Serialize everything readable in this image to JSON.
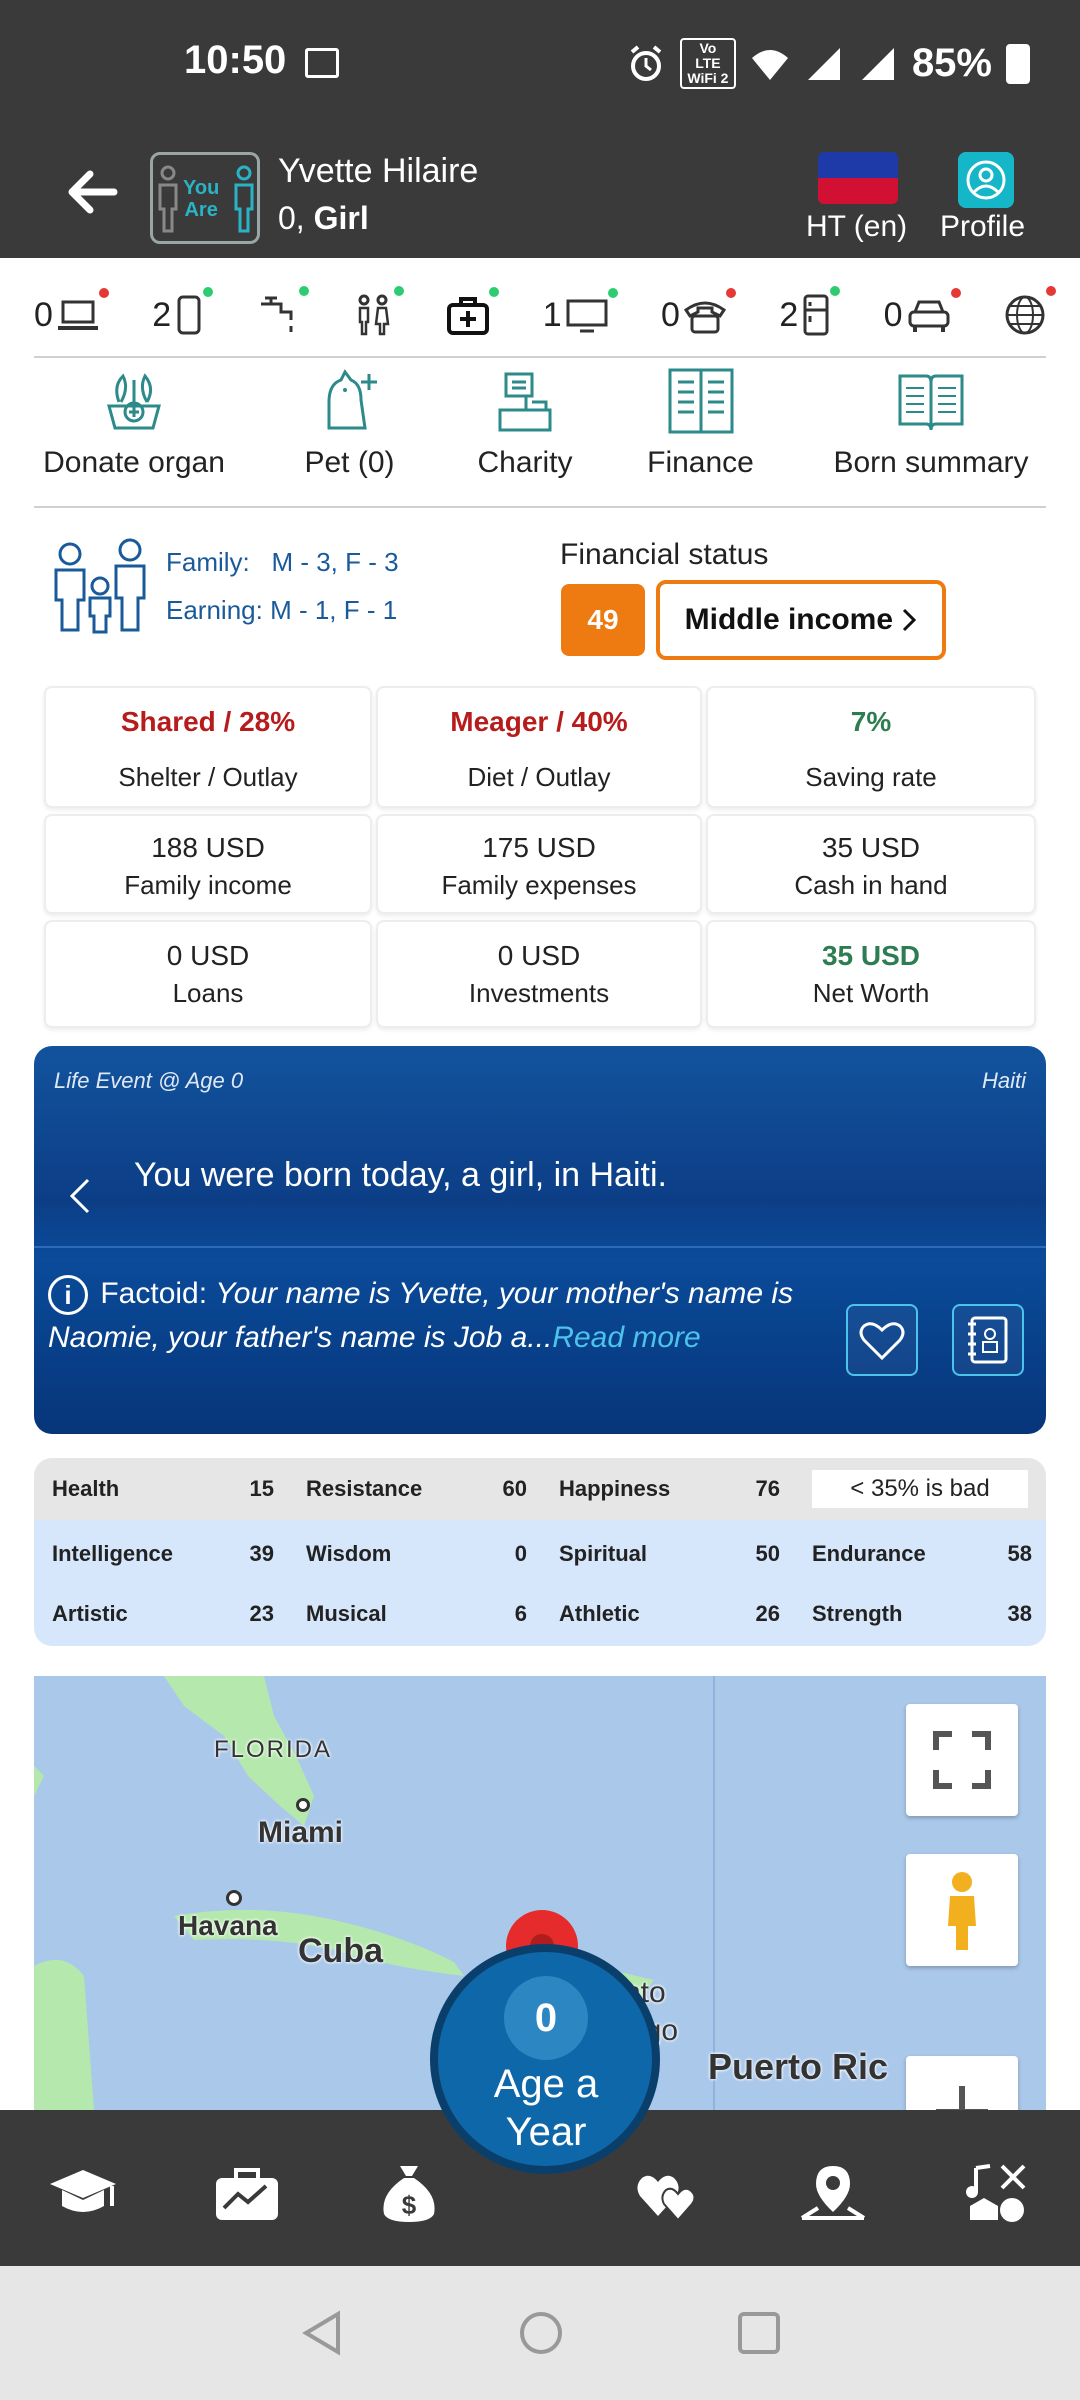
{
  "status_bar": {
    "time": "10:50",
    "battery": "85%",
    "wifi_label_top": "Vo LTE",
    "wifi_label_bottom": "WiFi 2"
  },
  "header": {
    "player_name": "Yvette Hilaire",
    "player_age": "0,",
    "player_gender": "Girl",
    "logo_text_line1": "You",
    "logo_text_line2": "Are",
    "language": "HT (en)",
    "profile": "Profile"
  },
  "assets": [
    {
      "count": "0",
      "icon": "laptop-icon",
      "dot": "red"
    },
    {
      "count": "2",
      "icon": "phone-icon",
      "dot": "green"
    },
    {
      "count": "",
      "icon": "faucet-icon",
      "dot": "green"
    },
    {
      "count": "",
      "icon": "restroom-icon",
      "dot": "green"
    },
    {
      "count": "",
      "icon": "medical-kit-icon",
      "dot": "green"
    },
    {
      "count": "1",
      "icon": "tv-icon",
      "dot": "green"
    },
    {
      "count": "0",
      "icon": "telephone-icon",
      "dot": "red"
    },
    {
      "count": "2",
      "icon": "fridge-icon",
      "dot": "green"
    },
    {
      "count": "0",
      "icon": "car-icon",
      "dot": "red"
    },
    {
      "count": "",
      "icon": "globe-icon",
      "dot": "red"
    }
  ],
  "actions": [
    {
      "label": "Donate organ",
      "icon": "donate-organ-icon"
    },
    {
      "label": "Pet (0)",
      "icon": "pet-icon"
    },
    {
      "label": "Charity",
      "icon": "charity-icon"
    },
    {
      "label": "Finance",
      "icon": "finance-icon"
    },
    {
      "label": "Born summary",
      "icon": "book-icon"
    }
  ],
  "family": {
    "family_label": "Family:",
    "family_value": "M - 3, F - 3",
    "earning_label": "Earning:",
    "earning_value": "M - 1, F - 1"
  },
  "financial": {
    "title": "Financial status",
    "score": "49",
    "class": "Middle income"
  },
  "stats": [
    {
      "value": "Shared / 28%",
      "label": "Shelter / Outlay",
      "tone": "red"
    },
    {
      "value": "Meager / 40%",
      "label": "Diet / Outlay",
      "tone": "red"
    },
    {
      "value": "7%",
      "label": "Saving rate",
      "tone": "green"
    },
    {
      "value": "188 USD",
      "label": "Family income",
      "tone": ""
    },
    {
      "value": "175 USD",
      "label": "Family expenses",
      "tone": ""
    },
    {
      "value": "35 USD",
      "label": "Cash in hand",
      "tone": ""
    },
    {
      "value": "0 USD",
      "label": "Loans",
      "tone": ""
    },
    {
      "value": "0 USD",
      "label": "Investments",
      "tone": ""
    },
    {
      "value": "35 USD",
      "label": "Net Worth",
      "tone": "green"
    }
  ],
  "life_event": {
    "header": "Life Event @ Age 0",
    "country": "Haiti",
    "text": "You were born today, a girl, in Haiti.",
    "factoid_label": "Factoid:",
    "factoid_text": "Your name is Yvette, your mother's name is Naomie, your father's name is Job a...",
    "read_more": "Read more"
  },
  "attributes": {
    "row1": [
      {
        "name": "Health",
        "value": "15"
      },
      {
        "name": "Resistance",
        "value": "60"
      },
      {
        "name": "Happiness",
        "value": "76"
      }
    ],
    "hint": "< 35% is bad",
    "row2": [
      {
        "name": "Intelligence",
        "value": "39"
      },
      {
        "name": "Wisdom",
        "value": "0"
      },
      {
        "name": "Spiritual",
        "value": "50"
      },
      {
        "name": "Endurance",
        "value": "58"
      }
    ],
    "row3": [
      {
        "name": "Artistic",
        "value": "23"
      },
      {
        "name": "Musical",
        "value": "6"
      },
      {
        "name": "Athletic",
        "value": "26"
      },
      {
        "name": "Strength",
        "value": "38"
      }
    ]
  },
  "map": {
    "labels": {
      "florida": "FLORIDA",
      "miami": "Miami",
      "havana": "Havana",
      "cuba": "Cuba",
      "santo_domingo_1": "nto",
      "santo_domingo_2": "ngo",
      "puerto_rico": "Puerto Ric"
    }
  },
  "age_button": {
    "age": "0",
    "label_line1": "Age a",
    "label_line2": "Year"
  },
  "bottom_nav": [
    {
      "icon": "education-icon"
    },
    {
      "icon": "career-icon"
    },
    {
      "icon": "money-bag-icon"
    },
    {
      "icon": "relationships-icon"
    },
    {
      "icon": "location-icon"
    },
    {
      "icon": "activities-icon"
    }
  ]
}
